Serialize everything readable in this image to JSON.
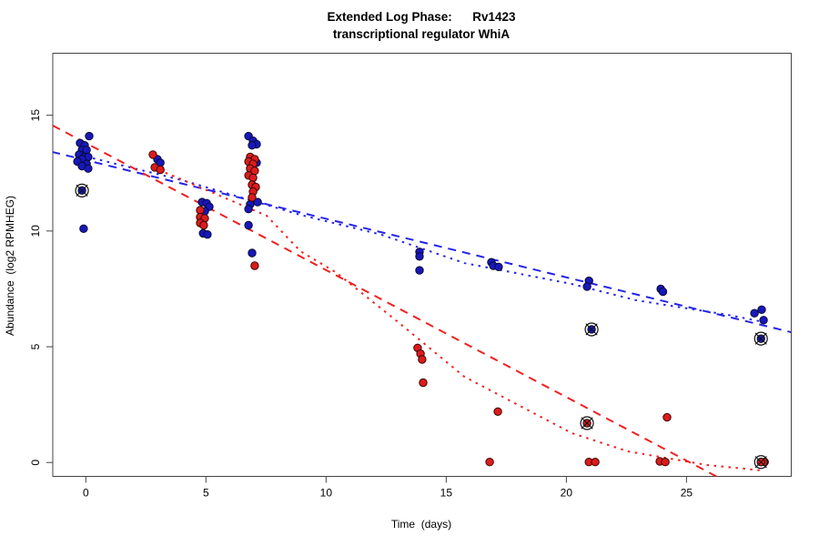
{
  "title_line1": "Extended Log Phase:      Rv1423",
  "title_line2": "transcriptional regulator WhiA",
  "chart_data": {
    "type": "scatter",
    "title": "Extended Log Phase: Rv1423 transcriptional regulator WhiA",
    "xlabel": "Time  (days)",
    "ylabel": "Abundance  (log2 RPMHEG)",
    "x_ticks": [
      0,
      5,
      10,
      15,
      20,
      25
    ],
    "y_ticks": [
      0,
      5,
      10,
      15
    ],
    "xlim": [
      -1.375,
      29.36
    ],
    "ylim": [
      -0.6,
      17.68
    ],
    "grid": false,
    "legend": "none",
    "point_colors": {
      "blue_fill": "#1717bd",
      "blue_edge": "#0a0a30",
      "red_fill": "#dc1c1c",
      "red_edge": "#3a0606"
    },
    "line_colors": {
      "blue": "#2424e8",
      "red": "#f02020"
    },
    "series": [
      {
        "name": "series_blue",
        "color": "#1717bd",
        "points": [
          [
            0.14,
            14.1
          ],
          [
            -0.24,
            13.8
          ],
          [
            -0.05,
            13.7
          ],
          [
            -0.16,
            13.5
          ],
          [
            0.03,
            13.5
          ],
          [
            -0.28,
            13.3
          ],
          [
            -0.05,
            13.2
          ],
          [
            0.1,
            13.2
          ],
          [
            -0.16,
            13.1
          ],
          [
            -0.35,
            13.0
          ],
          [
            0.03,
            12.9
          ],
          [
            -0.16,
            12.8
          ],
          [
            0.1,
            12.7
          ],
          [
            -0.09,
            10.1
          ],
          [
            2.98,
            13.1
          ],
          [
            3.1,
            12.95
          ],
          [
            4.84,
            11.25
          ],
          [
            5.03,
            11.2
          ],
          [
            5.14,
            11.05
          ],
          [
            4.95,
            10.85
          ],
          [
            4.88,
            9.9
          ],
          [
            5.06,
            9.85
          ],
          [
            6.77,
            14.1
          ],
          [
            6.96,
            13.9
          ],
          [
            7.11,
            13.75
          ],
          [
            6.92,
            13.7
          ],
          [
            7.11,
            12.95
          ],
          [
            7.15,
            11.25
          ],
          [
            6.84,
            11.15
          ],
          [
            6.77,
            10.95
          ],
          [
            6.77,
            10.25
          ],
          [
            6.92,
            9.05
          ],
          [
            13.89,
            9.1
          ],
          [
            13.89,
            8.9
          ],
          [
            13.89,
            8.3
          ],
          [
            16.88,
            8.65
          ],
          [
            16.96,
            8.5
          ],
          [
            17.18,
            8.45
          ],
          [
            20.94,
            7.85
          ],
          [
            20.86,
            7.6
          ],
          [
            23.93,
            7.5
          ],
          [
            24.02,
            7.38
          ],
          [
            28.13,
            6.6
          ],
          [
            27.83,
            6.45
          ],
          [
            28.21,
            6.15
          ]
        ]
      },
      {
        "name": "series_red",
        "color": "#dc1c1c",
        "points": [
          [
            2.79,
            13.3
          ],
          [
            2.87,
            12.75
          ],
          [
            3.1,
            12.65
          ],
          [
            4.76,
            10.9
          ],
          [
            4.76,
            10.6
          ],
          [
            4.95,
            10.55
          ],
          [
            4.76,
            10.35
          ],
          [
            4.91,
            10.25
          ],
          [
            6.84,
            13.2
          ],
          [
            7.03,
            13.1
          ],
          [
            6.77,
            13.0
          ],
          [
            6.96,
            12.9
          ],
          [
            6.84,
            12.7
          ],
          [
            7.03,
            12.6
          ],
          [
            6.77,
            12.4
          ],
          [
            6.96,
            12.3
          ],
          [
            6.92,
            12.0
          ],
          [
            7.07,
            11.9
          ],
          [
            6.96,
            11.7
          ],
          [
            6.92,
            11.45
          ],
          [
            7.03,
            8.5
          ],
          [
            13.81,
            4.95
          ],
          [
            13.93,
            4.7
          ],
          [
            14.0,
            4.45
          ],
          [
            14.04,
            3.45
          ],
          [
            17.15,
            2.2
          ],
          [
            16.81,
            0.02
          ],
          [
            20.94,
            0.02
          ],
          [
            21.2,
            0.02
          ],
          [
            24.19,
            1.95
          ],
          [
            23.89,
            0.05
          ],
          [
            24.12,
            0.02
          ],
          [
            28.1,
            0.02
          ],
          [
            28.25,
            0.02
          ]
        ]
      }
    ],
    "circled_points": [
      {
        "x": -0.16,
        "y": 11.75,
        "series": "blue"
      },
      {
        "x": 21.05,
        "y": 5.75,
        "series": "blue"
      },
      {
        "x": 28.1,
        "y": 5.35,
        "series": "blue"
      },
      {
        "x": 20.86,
        "y": 1.7,
        "series": "red"
      },
      {
        "x": 28.1,
        "y": 0.02,
        "series": "red"
      }
    ],
    "trend_lines": [
      {
        "name": "blue-dashed-fit",
        "color": "#2424e8",
        "style": "dashed",
        "points": [
          [
            -1.41,
            13.42
          ],
          [
            29.35,
            5.63
          ]
        ]
      },
      {
        "name": "blue-dotted-fit",
        "color": "#2424e8",
        "style": "dotted",
        "points": [
          [
            0,
            13.22
          ],
          [
            4.0,
            12.2
          ],
          [
            8.93,
            10.7
          ],
          [
            12.3,
            9.84
          ],
          [
            15.75,
            8.62
          ],
          [
            20.2,
            7.72
          ],
          [
            22.9,
            7.01
          ],
          [
            26.7,
            6.38
          ],
          [
            28.2,
            6.07
          ]
        ]
      },
      {
        "name": "red-dashed-fit",
        "color": "#f02020",
        "style": "dashed",
        "points": [
          [
            -1.38,
            14.56
          ],
          [
            26.35,
            -0.66
          ]
        ]
      },
      {
        "name": "red-dotted-fit",
        "color": "#f02020",
        "style": "dotted",
        "points": [
          [
            2.75,
            12.75
          ],
          [
            3.62,
            12.39
          ],
          [
            7.53,
            10.66
          ],
          [
            8.93,
            9.13
          ],
          [
            10.44,
            8.19
          ],
          [
            13.09,
            5.99
          ],
          [
            15.75,
            3.71
          ],
          [
            20.22,
            1.27
          ],
          [
            22.56,
            0.48
          ],
          [
            25.86,
            -0.11
          ],
          [
            28.1,
            -0.34
          ]
        ]
      }
    ]
  }
}
